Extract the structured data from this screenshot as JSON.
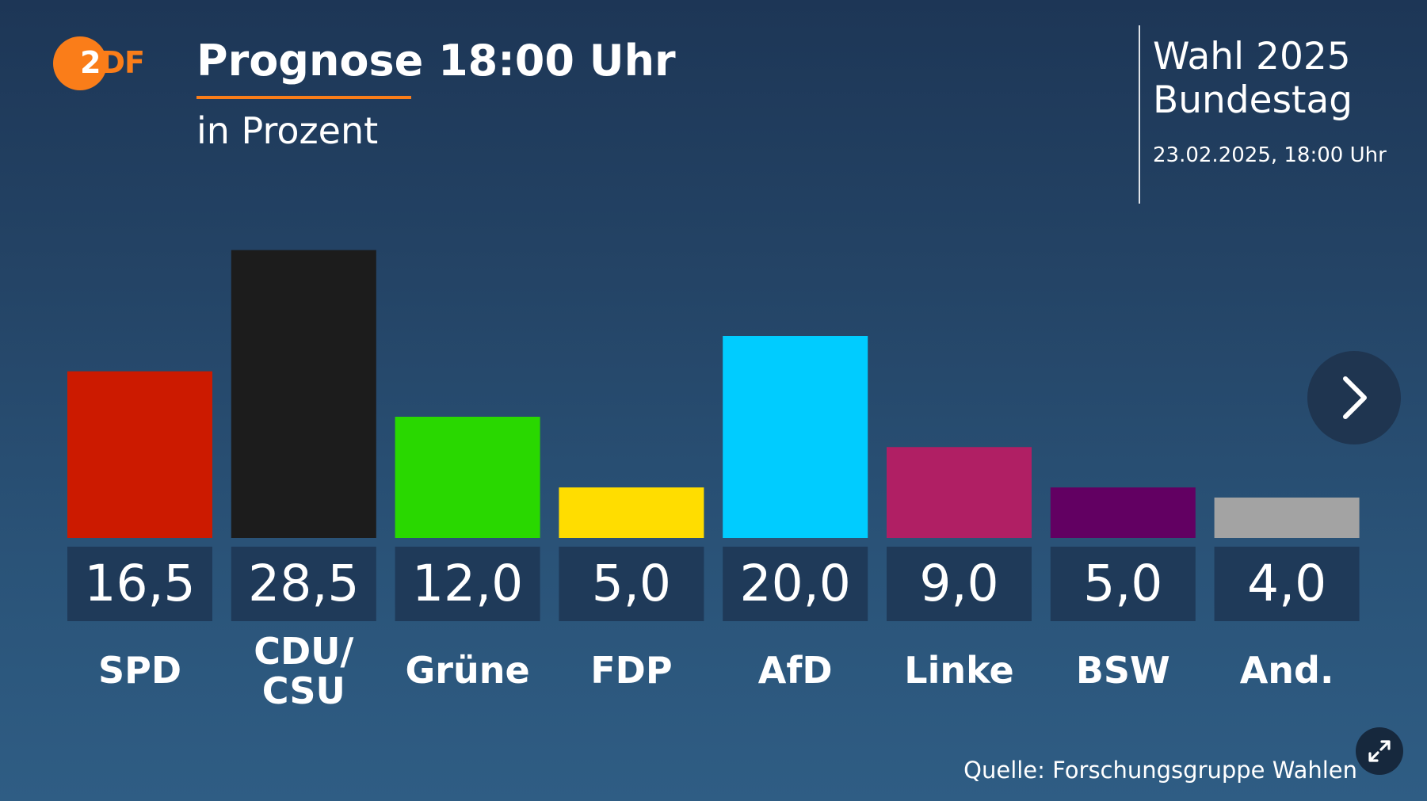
{
  "broadcaster": {
    "logo_icon": "zdf-logo",
    "logo_text": "ZDF",
    "brand_color": "#fa7d19"
  },
  "header": {
    "title": "Prognose 18:00 Uhr",
    "subtitle": "in Prozent"
  },
  "election": {
    "line1": "Wahl 2025",
    "line2": "Bundestag",
    "date": "23.02.2025, 18:00 Uhr"
  },
  "controls": {
    "next_icon": "chevron-right-icon",
    "expand_icon": "expand-arrows-icon"
  },
  "source": "Quelle: Forschungsgruppe Wahlen",
  "chart_data": {
    "type": "bar",
    "title": "Prognose 18:00 Uhr",
    "subtitle": "in Prozent",
    "categories": [
      "SPD",
      "CDU/\nCSU",
      "Grüne",
      "FDP",
      "AfD",
      "Linke",
      "BSW",
      "And."
    ],
    "values": [
      16.5,
      28.5,
      12.0,
      5.0,
      20.0,
      9.0,
      5.0,
      4.0
    ],
    "value_labels": [
      "16,5",
      "28,5",
      "12,0",
      "5,0",
      "20,0",
      "9,0",
      "5,0",
      "4,0"
    ],
    "colors": [
      "#cc1a00",
      "#1c1c1c",
      "#29d800",
      "#ffdd00",
      "#00ccff",
      "#b01f64",
      "#620062",
      "#a3a3a3"
    ],
    "value_box_color": "#1f3a59",
    "grid": false,
    "legend": "none"
  }
}
